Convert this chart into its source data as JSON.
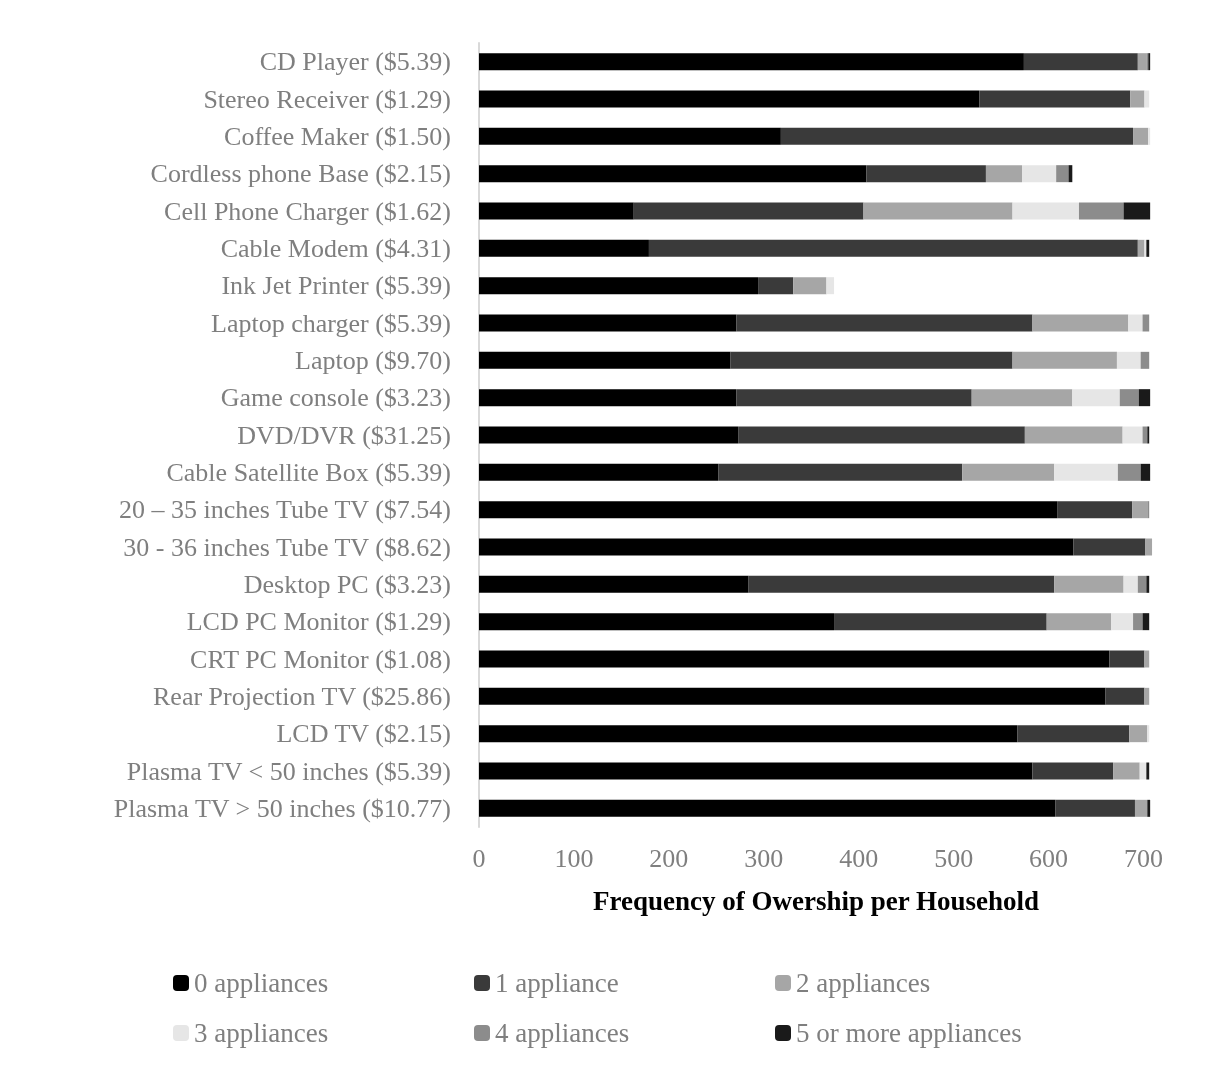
{
  "chart_data": {
    "type": "bar",
    "orientation": "horizontal",
    "stacked": true,
    "categories": [
      "CD Player ($5.39)",
      "Stereo Receiver ($1.29)",
      "Coffee Maker ($1.50)",
      "Cordless phone Base ($2.15)",
      "Cell Phone Charger ($1.62)",
      "Cable Modem ($4.31)",
      "Ink Jet Printer ($5.39)",
      "Laptop charger ($5.39)",
      "Laptop ($9.70)",
      "Game console ($3.23)",
      "DVD/DVR ($31.25)",
      "Cable Satellite Box ($5.39)",
      "20 – 35 inches Tube TV ($7.54)",
      "30 - 36 inches Tube TV ($8.62)",
      "Desktop PC ($3.23)",
      "LCD PC Monitor ($1.29)",
      "CRT PC Monitor ($1.08)",
      "Rear Projection TV ($25.86)",
      "LCD TV ($2.15)",
      "Plasma TV < 50 inches ($5.39)",
      "Plasma TV > 50 inches ($10.77)"
    ],
    "series": [
      {
        "name": "0 appliances",
        "color": "#000000",
        "values": [
          574,
          527,
          318,
          408,
          163,
          179,
          294,
          271,
          265,
          271,
          273,
          252,
          609,
          626,
          284,
          374,
          664,
          660,
          567,
          583,
          607
        ]
      },
      {
        "name": "1 appliance",
        "color": "#3a3a3a",
        "values": [
          120,
          159,
          371,
          126,
          242,
          515,
          37,
          312,
          297,
          248,
          302,
          257,
          79,
          76,
          322,
          224,
          37,
          41,
          118,
          85,
          84
        ]
      },
      {
        "name": "2 appliances",
        "color": "#a6a6a6",
        "values": [
          9,
          15,
          16,
          38,
          157,
          7,
          35,
          101,
          110,
          106,
          103,
          97,
          16,
          7,
          73,
          68,
          5,
          5,
          19,
          28,
          13
        ]
      },
      {
        "name": "3 appliances",
        "color": "#e6e6e6",
        "values": [
          0,
          5,
          2,
          36,
          70,
          2,
          8,
          15,
          25,
          50,
          21,
          67,
          0,
          0,
          15,
          23,
          0,
          0,
          2,
          7,
          0
        ]
      },
      {
        "name": "4 appliances",
        "color": "#8c8c8c",
        "values": [
          2,
          0,
          0,
          13,
          47,
          0,
          0,
          7,
          9,
          20,
          5,
          24,
          2,
          0,
          9,
          10,
          0,
          0,
          0,
          0,
          0
        ]
      },
      {
        "name": "5 or more appliances",
        "color": "#1a1a1a",
        "values": [
          2,
          0,
          0,
          4,
          28,
          3,
          0,
          0,
          0,
          12,
          2,
          10,
          0,
          0,
          3,
          7,
          0,
          0,
          0,
          3,
          3
        ]
      }
    ],
    "xlim": [
      0,
      710
    ],
    "xticks": [
      0,
      100,
      200,
      300,
      400,
      500,
      600,
      700
    ],
    "xlabel": "Frequency of Owership per Household",
    "grid": false,
    "legend": "bottom"
  }
}
